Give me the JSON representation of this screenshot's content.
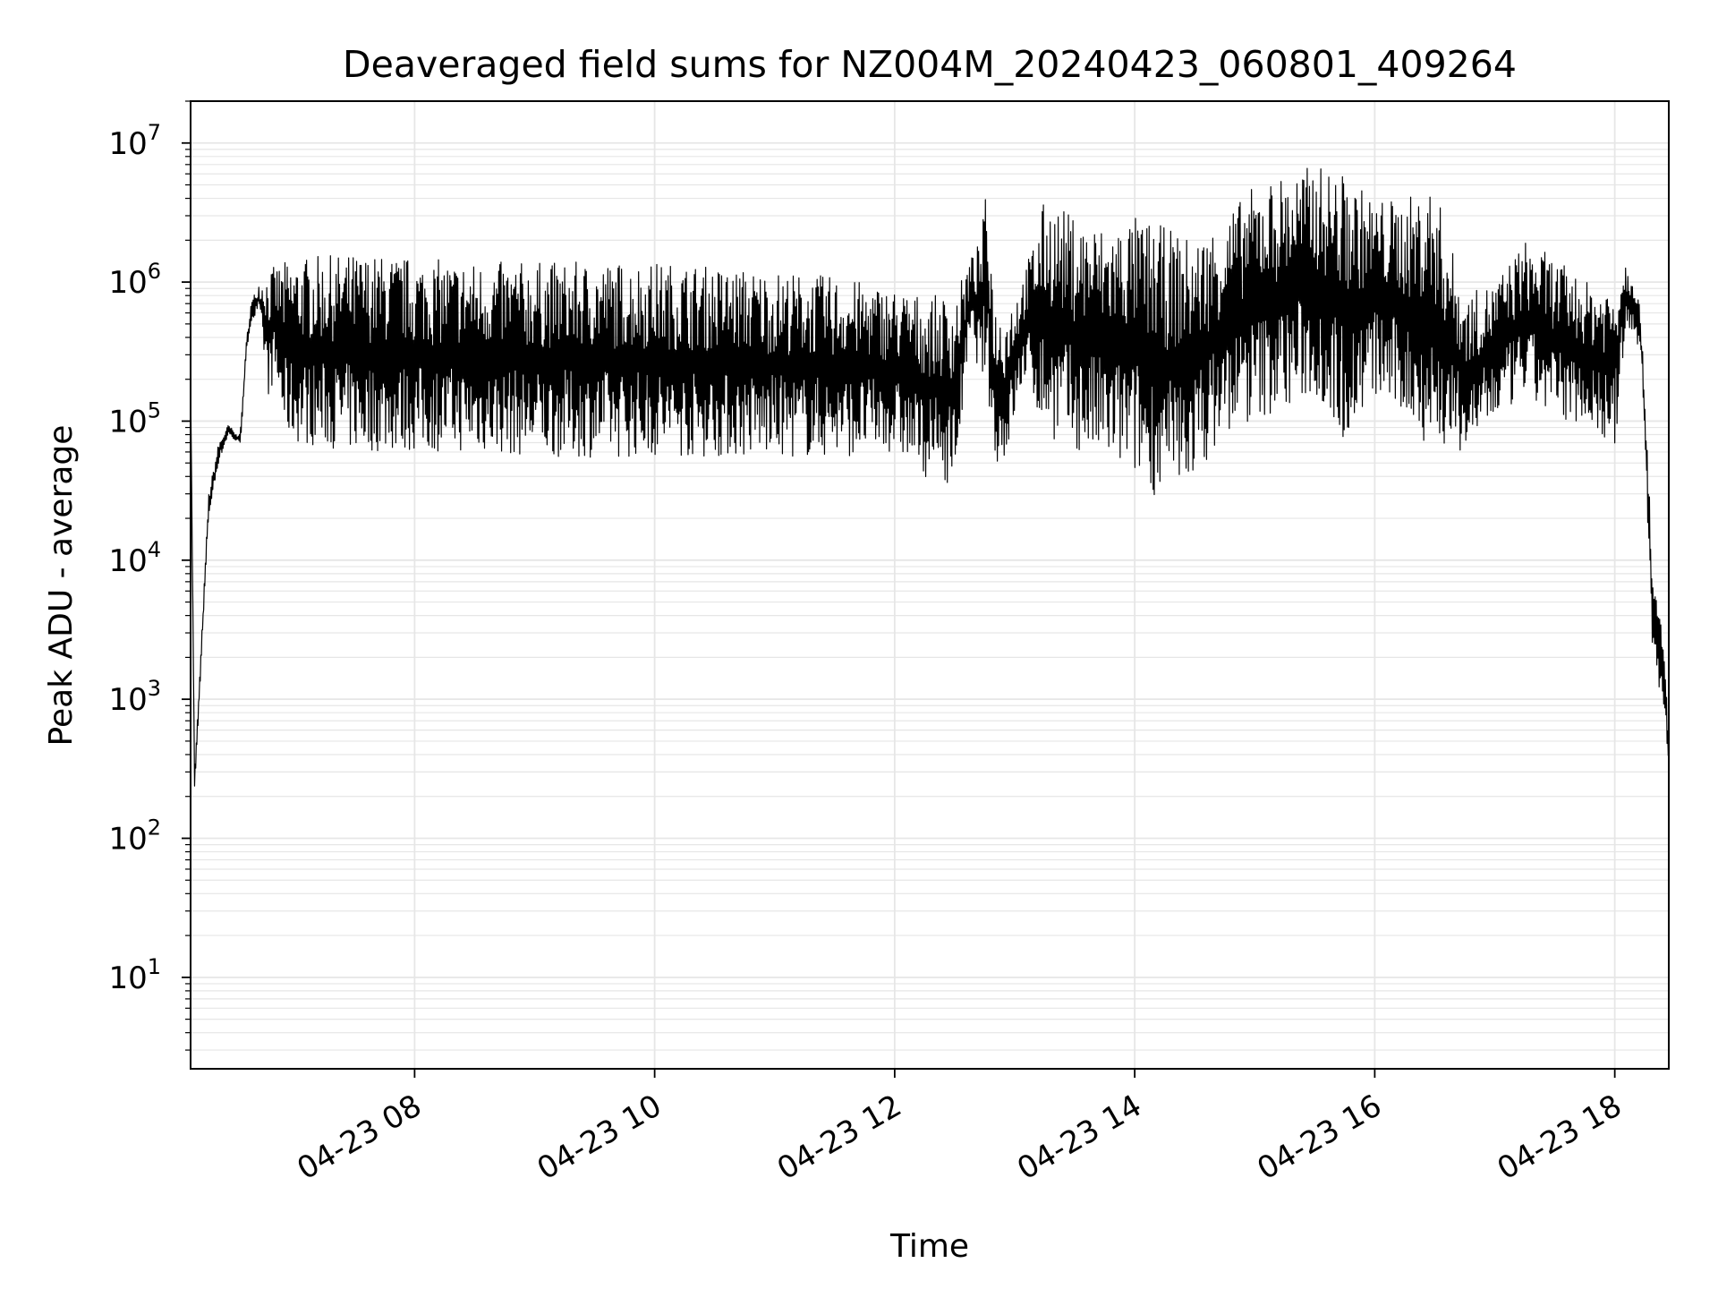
{
  "chart_data": {
    "type": "line",
    "title": "Deaveraged field sums for NZ004M_20240423_060801_409264",
    "xlabel": "Time",
    "ylabel": "Peak ADU - average",
    "yscale": "log",
    "xlim": [
      "2024-04-23 06:08",
      "2024-04-23 18:27"
    ],
    "ylim": [
      2.2,
      20000000
    ],
    "grid": true,
    "line_color": "#000000",
    "grid_color": "#e6e6e6",
    "x_ticks": [
      {
        "value": "2024-04-23 08:00",
        "label": "04-23 08"
      },
      {
        "value": "2024-04-23 10:00",
        "label": "04-23 10"
      },
      {
        "value": "2024-04-23 12:00",
        "label": "04-23 12"
      },
      {
        "value": "2024-04-23 14:00",
        "label": "04-23 14"
      },
      {
        "value": "2024-04-23 16:00",
        "label": "04-23 16"
      },
      {
        "value": "2024-04-23 18:00",
        "label": "04-23 18"
      }
    ],
    "y_ticks": [
      {
        "value": 10,
        "base": "10",
        "exp": "1"
      },
      {
        "value": 100,
        "base": "10",
        "exp": "2"
      },
      {
        "value": 1000,
        "base": "10",
        "exp": "3"
      },
      {
        "value": 10000,
        "base": "10",
        "exp": "4"
      },
      {
        "value": 100000,
        "base": "10",
        "exp": "5"
      },
      {
        "value": 1000000,
        "base": "10",
        "exp": "6"
      },
      {
        "value": 10000000,
        "base": "10",
        "exp": "7"
      }
    ],
    "series": [
      {
        "x": [
          "2024-04-23 06:08",
          "2024-04-23 06:10",
          "2024-04-23 06:13",
          "2024-04-23 06:17",
          "2024-04-23 06:22",
          "2024-04-23 06:27",
          "2024-04-23 06:31",
          "2024-04-23 06:33",
          "2024-04-23 06:36",
          "2024-04-23 06:38",
          "2024-04-23 06:42",
          "2024-04-23 06:47",
          "2024-04-23 06:50",
          "2024-04-23 06:55",
          "2024-04-23 07:00",
          "2024-04-23 07:30",
          "2024-04-23 08:00",
          "2024-04-23 08:30",
          "2024-04-23 09:00",
          "2024-04-23 09:30",
          "2024-04-23 10:00",
          "2024-04-23 10:30",
          "2024-04-23 11:00",
          "2024-04-23 11:30",
          "2024-04-23 12:00",
          "2024-04-23 12:15",
          "2024-04-23 12:30",
          "2024-04-23 12:38",
          "2024-04-23 12:43",
          "2024-04-23 12:46",
          "2024-04-23 12:50",
          "2024-04-23 12:55",
          "2024-04-23 13:05",
          "2024-04-23 13:15",
          "2024-04-23 13:30",
          "2024-04-23 13:45",
          "2024-04-23 14:00",
          "2024-04-23 14:15",
          "2024-04-23 14:30",
          "2024-04-23 14:45",
          "2024-04-23 15:00",
          "2024-04-23 15:15",
          "2024-04-23 15:30",
          "2024-04-23 15:45",
          "2024-04-23 16:00",
          "2024-04-23 16:15",
          "2024-04-23 16:30",
          "2024-04-23 16:45",
          "2024-04-23 17:00",
          "2024-04-23 17:15",
          "2024-04-23 17:30",
          "2024-04-23 17:45",
          "2024-04-23 18:00",
          "2024-04-23 18:05",
          "2024-04-23 18:10",
          "2024-04-23 18:13",
          "2024-04-23 18:15",
          "2024-04-23 18:17",
          "2024-04-23 18:19",
          "2024-04-23 18:21",
          "2024-04-23 18:23",
          "2024-04-23 18:25",
          "2024-04-23 18:27"
        ],
        "high": [
          200000,
          300,
          2000,
          30000,
          70000,
          95000,
          80000,
          90000,
          400000,
          700000,
          1000000,
          1200000,
          1300000,
          1400000,
          1500000,
          1600000,
          1500000,
          1400000,
          1400000,
          1400000,
          1400000,
          1300000,
          1200000,
          1100000,
          900000,
          800000,
          800000,
          1500000,
          2000000,
          5000000,
          700000,
          600000,
          1200000,
          4000000,
          3000000,
          2500000,
          3000000,
          2500000,
          2000000,
          3000000,
          5000000,
          6000000,
          7000000,
          6000000,
          4000000,
          4000000,
          5000000,
          800000,
          1000000,
          2000000,
          1500000,
          1000000,
          1000000,
          1500000,
          1200000,
          600000,
          150000,
          50000,
          8000,
          5000,
          4000,
          2000,
          500
        ],
        "low": [
          200000,
          200,
          1500,
          20000,
          50000,
          80000,
          70000,
          70000,
          300000,
          500000,
          600000,
          150000,
          200000,
          80000,
          70000,
          60000,
          60000,
          60000,
          55000,
          55000,
          55000,
          55000,
          55000,
          55000,
          60000,
          40000,
          35000,
          400000,
          200000,
          200000,
          50000,
          50000,
          200000,
          80000,
          60000,
          50000,
          40000,
          25000,
          40000,
          80000,
          100000,
          120000,
          150000,
          70000,
          150000,
          100000,
          60000,
          60000,
          100000,
          150000,
          100000,
          100000,
          60000,
          400000,
          400000,
          300000,
          80000,
          10000,
          2000,
          1500,
          1000,
          800,
          300
        ]
      }
    ]
  }
}
